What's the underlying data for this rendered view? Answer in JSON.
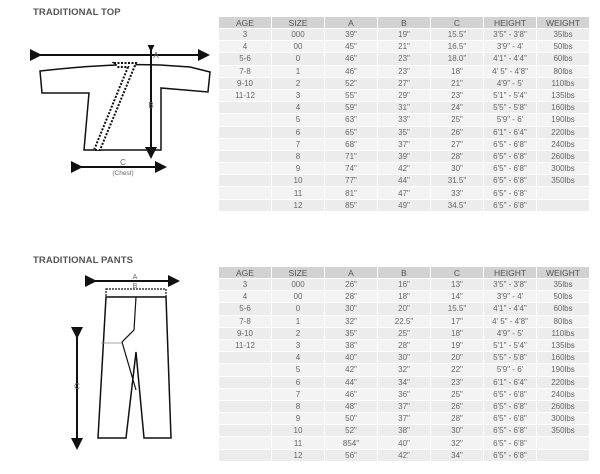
{
  "top": {
    "title": "TRADITIONAL TOP",
    "diagram_labels": {
      "a": "A",
      "b": "B",
      "c": "C",
      "c_note": "(Chest)"
    },
    "headers": [
      "AGE",
      "SIZE",
      "A",
      "B",
      "C",
      "HEIGHT",
      "WEIGHT"
    ],
    "rows": [
      [
        "3",
        "000",
        "39\"",
        "19\"",
        "15.5\"",
        "3'5\" - 3'8\"",
        "35lbs"
      ],
      [
        "4",
        "00",
        "45\"",
        "21\"",
        "16.5\"",
        "3'9\" - 4'",
        "50lbs"
      ],
      [
        "5-6",
        "0",
        "46\"",
        "23\"",
        "18.0\"",
        "4'1\" - 4'4\"",
        "60lbs"
      ],
      [
        "7-8",
        "1",
        "46\"",
        "23\"",
        "18\"",
        "4' 5\" - 4'8\"",
        "80lbs"
      ],
      [
        "9-10",
        "2",
        "52\"",
        "27\"",
        "21\"",
        "4'9\" - 5'",
        "110lbs"
      ],
      [
        "11-12",
        "3",
        "55\"",
        "29\"",
        "23\"",
        "5'1\" - 5'4\"",
        "135lbs"
      ],
      [
        "",
        "4",
        "59\"",
        "31\"",
        "24\"",
        "5'5\" - 5'8\"",
        "160lbs"
      ],
      [
        "",
        "5",
        "63\"",
        "33\"",
        "25\"",
        "5'9\" - 6'",
        "190lbs"
      ],
      [
        "",
        "6",
        "65\"",
        "35\"",
        "26\"",
        "6'1\" - 6'4\"",
        "220lbs"
      ],
      [
        "",
        "7",
        "68\"",
        "37\"",
        "27\"",
        "6'5\" - 6'8\"",
        "240lbs"
      ],
      [
        "",
        "8",
        "71\"",
        "39\"",
        "28\"",
        "6'5\" - 6'8\"",
        "260lbs"
      ],
      [
        "",
        "9",
        "74\"",
        "42\"",
        "30\"",
        "6'5\" - 6'8\"",
        "300lbs"
      ],
      [
        "",
        "10",
        "77\"",
        "44\"",
        "31.5\"",
        "6'5\" - 6'8\"",
        "350lbs"
      ],
      [
        "",
        "11",
        "81\"",
        "47\"",
        "33\"",
        "6'5\" - 6'8\"",
        ""
      ],
      [
        "",
        "12",
        "85\"",
        "49\"",
        "34.5\"",
        "6'5\" - 6'8\"",
        ""
      ]
    ]
  },
  "pants": {
    "title": "TRADITIONAL PANTS",
    "diagram_labels": {
      "a": "A",
      "b": "B",
      "c": "C"
    },
    "headers": [
      "AGE",
      "SIZE",
      "A",
      "B",
      "C",
      "HEIGHT",
      "WEIGHT"
    ],
    "rows": [
      [
        "3",
        "000",
        "26\"",
        "16\"",
        "13\"",
        "3'5\" - 3'8\"",
        "35lbs"
      ],
      [
        "4",
        "00",
        "28\"",
        "18\"",
        "14\"",
        "3'9\" - 4'",
        "50lbs"
      ],
      [
        "5-6",
        "0",
        "30\"",
        "20\"",
        "15.5\"",
        "4'1\" - 4'4\"",
        "60lbs"
      ],
      [
        "7-8",
        "1",
        "32\"",
        "22.5\"",
        "17\"",
        "4' 5\" - 4'8\"",
        "80lbs"
      ],
      [
        "9-10",
        "2",
        "35\"",
        "25\"",
        "18\"",
        "4'9\" - 5'",
        "110lbs"
      ],
      [
        "11-12",
        "3",
        "38\"",
        "28\"",
        "19\"",
        "5'1\" - 5'4\"",
        "135lbs"
      ],
      [
        "",
        "4",
        "40\"",
        "30\"",
        "20\"",
        "5'5\" - 5'8\"",
        "160lbs"
      ],
      [
        "",
        "5",
        "42\"",
        "32\"",
        "22\"",
        "5'9\" - 6'",
        "190lbs"
      ],
      [
        "",
        "6",
        "44\"",
        "34\"",
        "23\"",
        "6'1\" - 6'4\"",
        "220lbs"
      ],
      [
        "",
        "7",
        "46\"",
        "36\"",
        "25\"",
        "6'5\" - 6'8\"",
        "240lbs"
      ],
      [
        "",
        "8",
        "48\"",
        "37\"",
        "26\"",
        "6'5\" - 6'8\"",
        "260lbs"
      ],
      [
        "",
        "9",
        "50\"",
        "37\"",
        "28\"",
        "6'5\" - 6'8\"",
        "300lbs"
      ],
      [
        "",
        "10",
        "52\"",
        "38\"",
        "30\"",
        "6'5\" - 6'8\"",
        "350lbs"
      ],
      [
        "",
        "11",
        "854\"",
        "40\"",
        "32\"",
        "6'5\" - 6'8\"",
        ""
      ],
      [
        "",
        "12",
        "56\"",
        "42\"",
        "34\"",
        "6'5\" - 6'8\"",
        ""
      ]
    ]
  }
}
